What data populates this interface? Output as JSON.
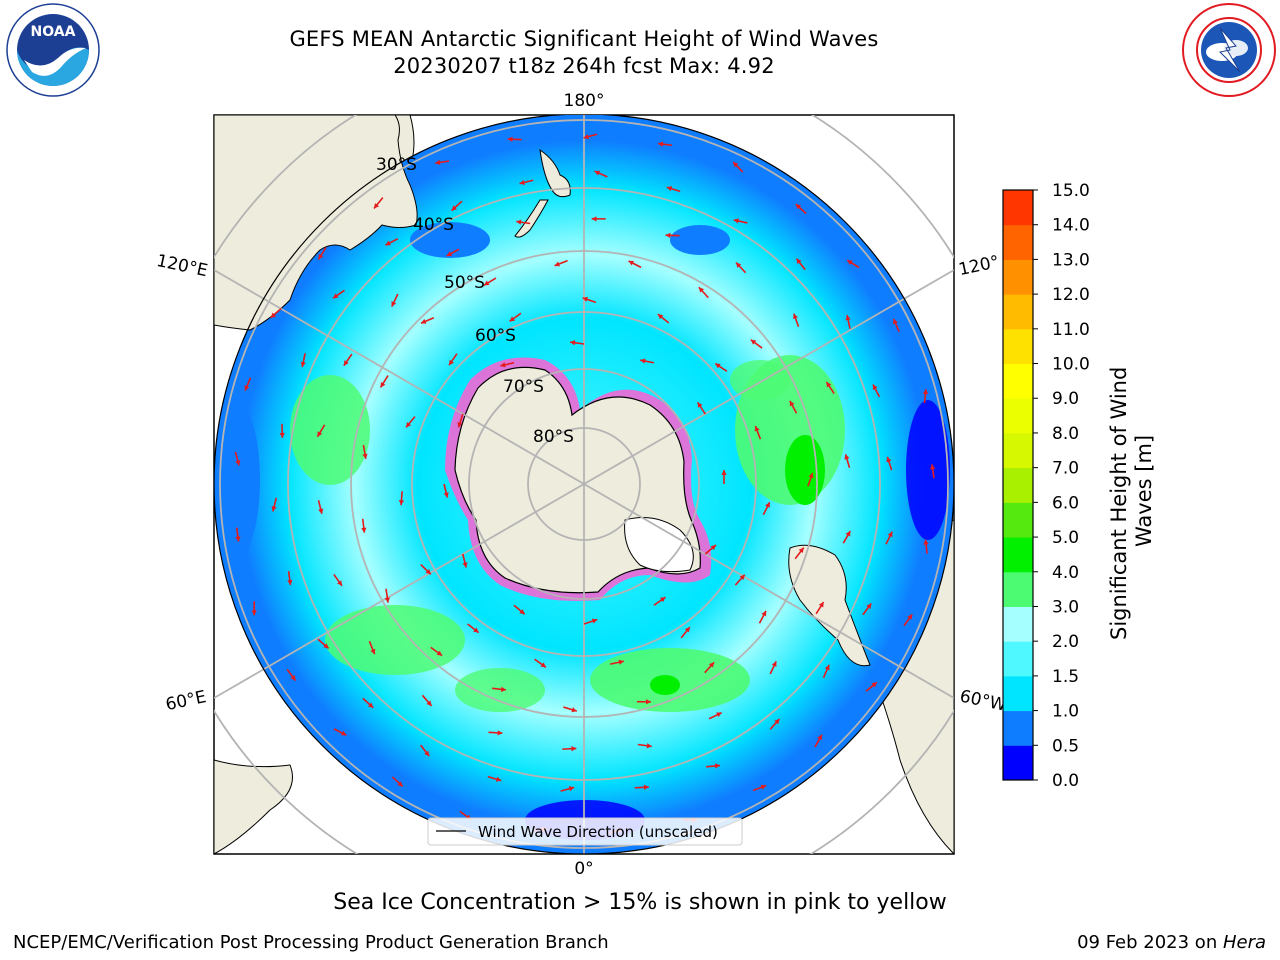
{
  "header": {
    "title_line1": "GEFS MEAN Antarctic Significant Height of Wind Waves",
    "title_line2": "20230207 t18z 264h fcst   Max: 4.92"
  },
  "map": {
    "projection": "south-polar-stereographic",
    "lat_labels": [
      "30°S",
      "40°S",
      "50°S",
      "60°S",
      "70°S",
      "80°S"
    ],
    "lon_labels": {
      "top": "180°",
      "left": "120°E",
      "right": "120°",
      "lower_left": "60°E",
      "lower_right": "60°W",
      "bottom": "0°"
    },
    "legend_label": "Wind Wave Direction (unscaled)",
    "land_color": "#eeecdc",
    "arrow_color": "#e41a1c",
    "grid_color": "#b4b4b4"
  },
  "colorbar": {
    "title": "Significant Height of Wind Waves [m]",
    "title_lines": [
      "Significant Height of Wind",
      "Waves [m]"
    ],
    "ticks": [
      "0.0",
      "0.5",
      "1.0",
      "1.5",
      "2.0",
      "3.0",
      "4.0",
      "5.0",
      "6.0",
      "7.0",
      "8.0",
      "9.0",
      "10.0",
      "11.0",
      "12.0",
      "13.0",
      "14.0",
      "15.0"
    ],
    "colors": [
      "#0000ff",
      "#0f7dff",
      "#00e5ff",
      "#4ff8ff",
      "#a6ffff",
      "#4dfb73",
      "#00f000",
      "#55e90f",
      "#a8f000",
      "#d6f800",
      "#ebff00",
      "#ffff00",
      "#ffe100",
      "#ffbb00",
      "#ff9000",
      "#ff6400",
      "#ff3600",
      "#ff0000"
    ]
  },
  "footer": {
    "note": "Sea Ice Concentration > 15% is shown in pink to yellow",
    "credit_left": "NCEP/EMC/Verification Post Processing Product Generation Branch",
    "credit_right_date": "09 Feb 2023 on ",
    "credit_right_machine": "Hera"
  },
  "logos": {
    "left_text": "NOAA"
  }
}
